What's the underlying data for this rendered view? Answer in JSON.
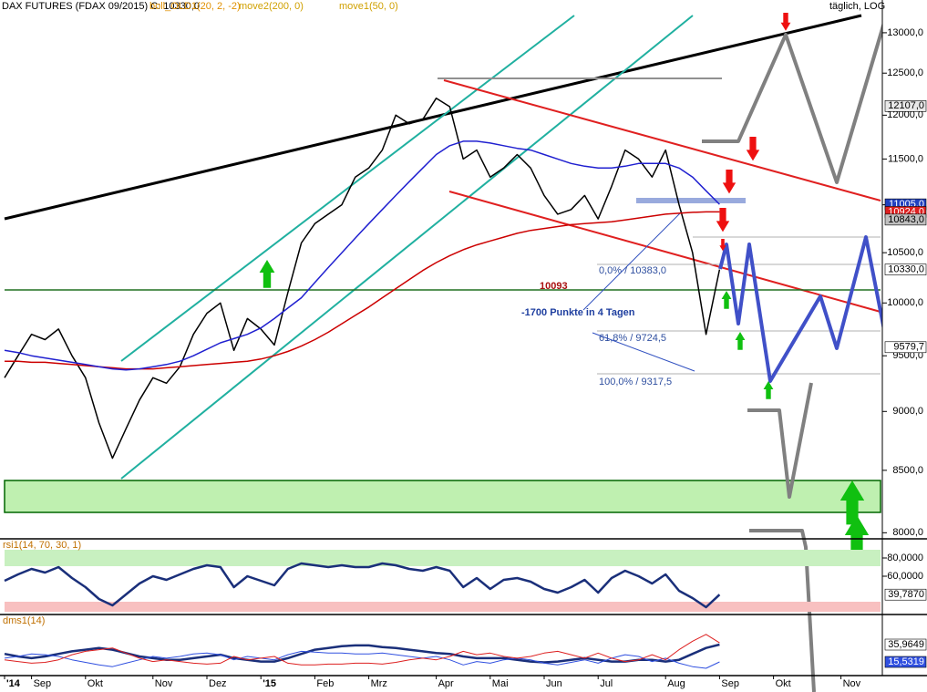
{
  "chart_data": [
    {
      "type": "line",
      "title": "DAX FUTURES (FDAX 09/2015) C: 10330,0",
      "indicators": [
        "boll_OLD1(20, 2, -2)"
      ],
      "scale_label": "täglich, LOG",
      "log_scale": true,
      "categories": [
        "'14",
        null,
        "Sep",
        null,
        null,
        null,
        "Okt",
        null,
        null,
        null,
        null,
        "Nov",
        null,
        null,
        null,
        "Dez",
        null,
        null,
        null,
        "'15",
        null,
        null,
        null,
        "Feb",
        null,
        null,
        null,
        "Mrz",
        null,
        null,
        null,
        null,
        "Apr",
        null,
        null,
        null,
        "Mai",
        null,
        null,
        null,
        "Jun",
        null,
        null,
        null,
        "Jul",
        null,
        null,
        null,
        null,
        "Aug",
        null,
        null,
        null,
        "Sep",
        null,
        null,
        null,
        "Okt",
        null,
        null,
        null,
        null,
        "Nov",
        null
      ],
      "series": [
        {
          "color": "#000000",
          "values": [
            9300,
            9500,
            9700,
            9650,
            9750,
            9500,
            9300,
            8900,
            8600,
            8850,
            9100,
            9300,
            9250,
            9400,
            9700,
            9900,
            10000,
            9550,
            9850,
            9750,
            9600,
            10100,
            10600,
            10800,
            10900,
            11000,
            11300,
            11400,
            11600,
            12000,
            11900,
            11950,
            12200,
            12100,
            11500,
            11600,
            11300,
            11400,
            11550,
            11400,
            11100,
            10900,
            10950,
            11100,
            10850,
            11200,
            11600,
            11500,
            11300,
            11600,
            11000,
            10500,
            9700,
            10330,
            null,
            null,
            null,
            null,
            null,
            null,
            null,
            null,
            null,
            null
          ]
        },
        {
          "name": "move2(200, 0)",
          "color": "#cc0000",
          "values": [
            9450,
            9450,
            9440,
            9440,
            9430,
            9420,
            9410,
            9400,
            9390,
            9380,
            9380,
            9380,
            9390,
            9400,
            9410,
            9420,
            9430,
            9440,
            9450,
            9470,
            9500,
            9540,
            9590,
            9650,
            9720,
            9800,
            9880,
            9960,
            10050,
            10140,
            10230,
            10320,
            10400,
            10470,
            10530,
            10580,
            10620,
            10660,
            10700,
            10730,
            10750,
            10770,
            10790,
            10800,
            10810,
            10820,
            10840,
            10860,
            10880,
            10900,
            10910,
            10920,
            10924,
            10924,
            null,
            null,
            null,
            null,
            null,
            null,
            null,
            null,
            null,
            null
          ]
        },
        {
          "name": "move1(50, 0)",
          "color": "#2020d0",
          "values": [
            9550,
            9530,
            9500,
            9480,
            9460,
            9440,
            9420,
            9400,
            9380,
            9370,
            9380,
            9400,
            9420,
            9450,
            9500,
            9560,
            9620,
            9660,
            9700,
            9760,
            9850,
            9950,
            10050,
            10200,
            10350,
            10500,
            10650,
            10800,
            10950,
            11100,
            11250,
            11400,
            11550,
            11650,
            11700,
            11700,
            11680,
            11650,
            11620,
            11600,
            11550,
            11500,
            11450,
            11420,
            11400,
            11400,
            11420,
            11450,
            11450,
            11450,
            11400,
            11300,
            11150,
            11005,
            null,
            null,
            null,
            null,
            null,
            null,
            null,
            null,
            null,
            null
          ]
        }
      ],
      "ylim": [
        7960,
        13420
      ],
      "yticks": [
        {
          "value": 8000,
          "label": "8000,0"
        },
        {
          "value": 8500,
          "label": "8500,0"
        },
        {
          "value": 9000,
          "label": "9000,0"
        },
        {
          "value": 9500,
          "label": "9500,0"
        },
        {
          "value": 10000,
          "label": "10000,0"
        },
        {
          "value": 10500,
          "label": "10500,0"
        },
        {
          "value": 11000,
          "label": "11000,0"
        },
        {
          "value": 11500,
          "label": "11500,0"
        },
        {
          "value": 12000,
          "label": "12000,0"
        },
        {
          "value": 12500,
          "label": "12500,0"
        },
        {
          "value": 13000,
          "label": "13000,0"
        }
      ],
      "price_markers": [
        {
          "value": 12107,
          "label": "12107,0",
          "color": "#e8e8e8"
        },
        {
          "value": 11005,
          "label": "11005,0",
          "color": "#2040c0"
        },
        {
          "value": 10924,
          "label": "10924,0",
          "color": "#dd2020"
        },
        {
          "value": 10843,
          "label": "10843,0",
          "color": "#c0c0c0"
        },
        {
          "value": 10330,
          "label": "10330,0",
          "color": "#ffffff"
        },
        {
          "value": 9579.7,
          "label": "9579,7",
          "color": "#ffffff"
        }
      ],
      "annotations": [
        "10093",
        "-1700 Punkte in 4 Tagen",
        "0,0% / 10383,0",
        "61,8% / 9724,5",
        "100,0% / 9317,5"
      ]
    },
    {
      "type": "line",
      "title": "rsi1(14, 70, 30, 1)",
      "series": [
        {
          "color": "#1a2f7a",
          "values": [
            55,
            62,
            68,
            64,
            70,
            58,
            48,
            35,
            28,
            40,
            52,
            60,
            56,
            62,
            68,
            72,
            70,
            48,
            60,
            55,
            50,
            68,
            74,
            72,
            70,
            72,
            70,
            70,
            74,
            72,
            68,
            66,
            70,
            66,
            48,
            58,
            46,
            56,
            58,
            54,
            46,
            42,
            48,
            56,
            42,
            58,
            66,
            60,
            52,
            62,
            44,
            36,
            26,
            39.787
          ]
        }
      ],
      "ylim": [
        19,
        99
      ],
      "yticks": [
        {
          "value": 60,
          "label": "60,0000"
        },
        {
          "value": 80,
          "label": "80,0000"
        }
      ],
      "price_markers": [
        {
          "value": 39.787,
          "label": "39,7870",
          "color": "#ffffff"
        }
      ]
    },
    {
      "type": "line",
      "title": "dms1(14)",
      "series": [
        {
          "color": "#1a2f7a",
          "values": [
            25,
            22,
            20,
            22,
            25,
            28,
            30,
            32,
            30,
            26,
            22,
            20,
            18,
            18,
            20,
            22,
            24,
            20,
            18,
            16,
            16,
            20,
            25,
            30,
            32,
            34,
            35,
            35,
            33,
            32,
            30,
            28,
            26,
            25,
            22,
            20,
            20,
            20,
            18,
            16,
            15,
            16,
            18,
            20,
            18,
            16,
            16,
            18,
            18,
            16,
            18,
            25,
            32,
            35.9649
          ]
        },
        {
          "color": "#3050e0",
          "values": [
            20,
            22,
            25,
            24,
            22,
            18,
            15,
            12,
            10,
            14,
            18,
            22,
            20,
            22,
            25,
            26,
            24,
            18,
            22,
            20,
            18,
            24,
            28,
            27,
            26,
            26,
            25,
            25,
            26,
            24,
            22,
            20,
            22,
            18,
            12,
            16,
            14,
            18,
            20,
            18,
            14,
            12,
            15,
            18,
            14,
            20,
            24,
            22,
            16,
            20,
            14,
            10,
            8,
            15.5319
          ]
        },
        {
          "color": "#dd2020",
          "values": [
            18,
            16,
            14,
            15,
            18,
            24,
            28,
            30,
            32,
            26,
            20,
            16,
            18,
            16,
            14,
            13,
            14,
            22,
            18,
            20,
            22,
            14,
            12,
            12,
            13,
            13,
            14,
            14,
            13,
            15,
            18,
            20,
            18,
            22,
            28,
            24,
            26,
            22,
            20,
            22,
            26,
            28,
            24,
            20,
            26,
            20,
            16,
            18,
            24,
            18,
            30,
            40,
            48,
            38
          ]
        }
      ],
      "ylim": [
        0.5,
        69.3
      ],
      "price_markers": [
        {
          "value": 35.9649,
          "label": "35,9649",
          "color": "#ffffff"
        },
        {
          "value": 15.5319,
          "label": "15,5319",
          "color": "#3050e0"
        }
      ]
    }
  ]
}
